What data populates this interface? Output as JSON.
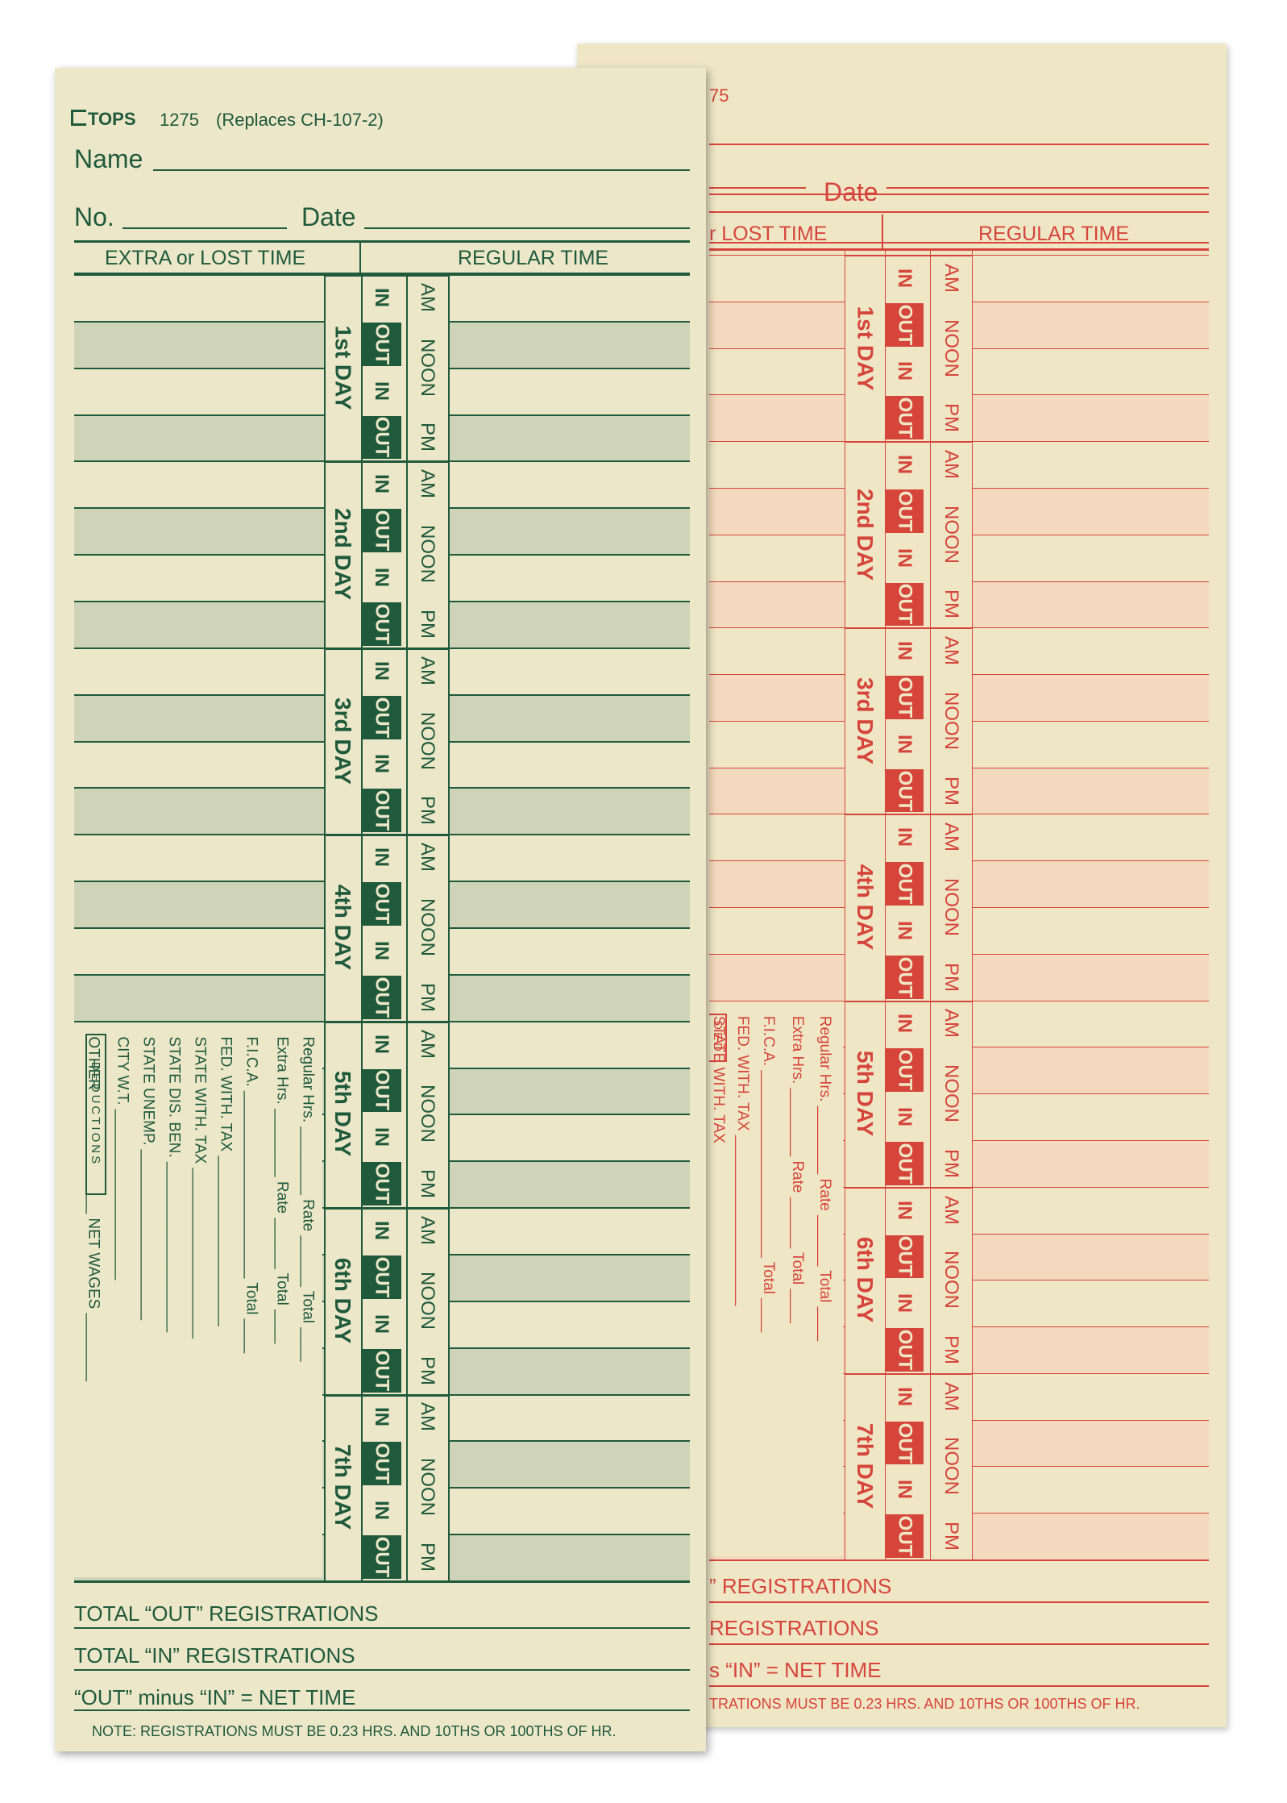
{
  "front": {
    "brand": "TOPS",
    "model": "1275",
    "replaces": "(Replaces CH-107-2)",
    "name_label": "Name",
    "no_label": "No.",
    "date_label": "Date",
    "extra_header": "EXTRA or LOST TIME",
    "regular_header": "REGULAR TIME",
    "days": [
      "1st DAY",
      "2nd DAY",
      "3rd DAY",
      "4th DAY",
      "5th DAY",
      "6th DAY",
      "7th DAY"
    ],
    "period_labels": [
      "AM",
      "NOON",
      "PM"
    ],
    "in_label": "IN",
    "out_label": "OUT",
    "deductions_label": "DEDUCTIONS",
    "payroll_lines": [
      "Regular Hrs. ________ Rate ______ Total ____",
      "Extra Hrs. ________ Rate ______ Total ____",
      "F.I.C.A. ______________________ Total ____",
      "FED. WITH. TAX ____________________",
      "STATE WITH. TAX ____________________",
      "STATE DIS. BEN. ____________________",
      "STATE UNEMP. ____________________",
      "CITY W.T. ____________________",
      "OTHER ______________ NET WAGES ________"
    ],
    "total_out": "TOTAL “OUT” REGISTRATIONS",
    "total_in": "TOTAL “IN” REGISTRATIONS",
    "net_time": "“OUT” minus “IN” = NET TIME",
    "note": "NOTE: REGISTRATIONS MUST BE 0.23 HRS. AND 10THS OR 100THS OF HR."
  },
  "back": {
    "model_partial": "75",
    "date_label": "Date",
    "extra_header_partial": "r LOST TIME",
    "regular_header": "REGULAR TIME",
    "deductions_partial": "DED",
    "payroll_partial": [
      "Regular Hrs. ________ Rate ______ Total ____",
      "Extra Hrs. ________ Rate ______ Total ____",
      "F.I.C.A. ______________________ Total ____",
      "FED. WITH. TAX ____________________",
      "STATE WITH. TAX"
    ],
    "total_out_partial": "” REGISTRATIONS",
    "total_in_partial": "REGISTRATIONS",
    "net_time_partial": "s “IN” = NET TIME",
    "note_partial": "TRATIONS MUST BE 0.23 HRS. AND 10THS OR 100THS OF HR."
  },
  "colors": {
    "front_ink": "#1f5a3c",
    "back_ink": "#d6453a",
    "front_paper": "#ede7c9",
    "back_paper": "#efe6c6",
    "front_band": "#cfd4b8",
    "back_band": "#f3d9bd"
  }
}
